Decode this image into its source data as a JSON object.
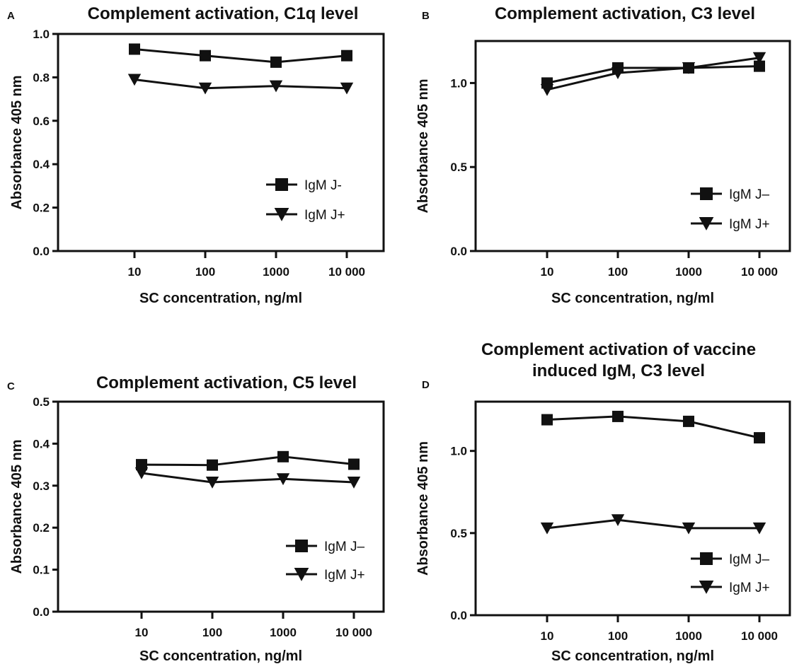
{
  "chart_data": [
    {
      "panel": "A",
      "type": "line",
      "title": "Complement activation, C1q level",
      "xlabel": "SC concentration, ng/ml",
      "ylabel": "Absorbance 405 nm",
      "x_scale": "log",
      "categories": [
        "10",
        "100",
        "1000",
        "10 000"
      ],
      "x": [
        10,
        100,
        1000,
        10000
      ],
      "ylim": [
        0,
        1.0
      ],
      "yticks": [
        0.0,
        0.2,
        0.4,
        0.6,
        0.8,
        1.0
      ],
      "ytick_labels": [
        "0.0",
        "0.2",
        "0.4",
        "0.6",
        "0.8",
        "1.0"
      ],
      "legend_position": "lower-right",
      "series": [
        {
          "name": "IgM J-",
          "marker": "square",
          "values": [
            0.93,
            0.9,
            0.87,
            0.9
          ]
        },
        {
          "name": "IgM J+",
          "marker": "triangle-down",
          "values": [
            0.79,
            0.75,
            0.76,
            0.75
          ]
        }
      ]
    },
    {
      "panel": "B",
      "type": "line",
      "title": "Complement activation, C3 level",
      "xlabel": "SC concentration, ng/ml",
      "ylabel": "Absorbance 405 nm",
      "x_scale": "log",
      "categories": [
        "10",
        "100",
        "1000",
        "10 000"
      ],
      "x": [
        10,
        100,
        1000,
        10000
      ],
      "ylim": [
        0,
        1.25
      ],
      "yticks": [
        0.0,
        0.5,
        1.0
      ],
      "ytick_labels": [
        "0.0",
        "0.5",
        "1.0"
      ],
      "legend_position": "lower-right",
      "series": [
        {
          "name": "IgM J–",
          "marker": "square",
          "values": [
            1.0,
            1.09,
            1.09,
            1.1
          ]
        },
        {
          "name": "IgM J+",
          "marker": "triangle-down",
          "values": [
            0.96,
            1.06,
            1.09,
            1.15
          ]
        }
      ]
    },
    {
      "panel": "C",
      "type": "line",
      "title": "Complement activation, C5 level",
      "xlabel": "SC concentration, ng/ml",
      "ylabel": "Absorbance 405 nm",
      "x_scale": "log",
      "categories": [
        "10",
        "100",
        "1000",
        "10 000"
      ],
      "x": [
        10,
        100,
        1000,
        10000
      ],
      "ylim": [
        0,
        0.5
      ],
      "yticks": [
        0.0,
        0.1,
        0.2,
        0.3,
        0.4,
        0.5
      ],
      "ytick_labels": [
        "0.0",
        "0.1",
        "0.2",
        "0.3",
        "0.4",
        "0.5"
      ],
      "legend_position": "lower-right",
      "series": [
        {
          "name": "IgM J–",
          "marker": "square",
          "values": [
            0.35,
            0.349,
            0.369,
            0.351
          ]
        },
        {
          "name": "IgM J+",
          "marker": "triangle-down",
          "values": [
            0.33,
            0.308,
            0.316,
            0.308
          ]
        }
      ]
    },
    {
      "panel": "D",
      "type": "line",
      "title": "Complement activation of vaccine induced IgM, C3 level",
      "title_lines": [
        "Complement activation of vaccine",
        "induced IgM, C3 level"
      ],
      "xlabel": "SC concentration, ng/ml",
      "ylabel": "Absorbance 405 nm",
      "x_scale": "log",
      "categories": [
        "10",
        "100",
        "1000",
        "10 000"
      ],
      "x": [
        10,
        100,
        1000,
        10000
      ],
      "ylim": [
        0,
        1.3
      ],
      "yticks": [
        0.0,
        0.5,
        1.0
      ],
      "ytick_labels": [
        "0.0",
        "0.5",
        "1.0"
      ],
      "legend_position": "lower-right",
      "series": [
        {
          "name": "IgM J–",
          "marker": "square",
          "values": [
            1.19,
            1.21,
            1.18,
            1.08
          ]
        },
        {
          "name": "IgM J+",
          "marker": "triangle-down",
          "values": [
            0.53,
            0.58,
            0.53,
            0.53
          ]
        }
      ]
    }
  ]
}
